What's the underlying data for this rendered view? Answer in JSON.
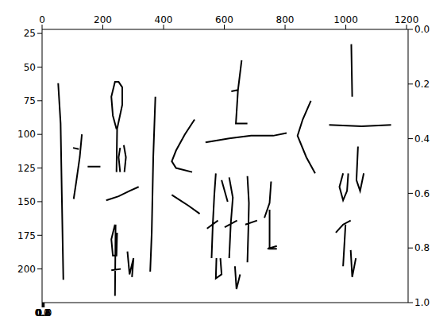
{
  "chart_data": {
    "type": "line",
    "color": "#000000",
    "grid": false,
    "xlim": [
      0,
      1205
    ],
    "xticks": [
      0,
      200,
      400,
      600,
      800,
      1000,
      1200
    ],
    "ylim": [
      22,
      225
    ],
    "yticks": [
      25,
      50,
      75,
      100,
      125,
      150,
      175,
      200
    ],
    "x2lim": [
      0,
      1
    ],
    "x2ticks": [
      {
        "value": 0,
        "label": "0.0"
      },
      {
        "value": 0.2,
        "label": "0.2"
      },
      {
        "value": 0.4,
        "label": "0.4"
      },
      {
        "value": 0.6,
        "label": "0.6"
      },
      {
        "value": 0.8,
        "label": "0.8"
      },
      {
        "value": 1,
        "label": "1.0"
      }
    ],
    "y2lim": [
      0,
      1
    ],
    "y2ticks": [
      {
        "value": 0,
        "label": "0.0"
      },
      {
        "value": 0.2,
        "label": "0.2"
      },
      {
        "value": 0.4,
        "label": "0.4"
      },
      {
        "value": 0.6,
        "label": "0.6"
      },
      {
        "value": 0.8,
        "label": "0.8"
      },
      {
        "value": 1,
        "label": "1.0"
      }
    ],
    "x": [
      53,
      61,
      65,
      70,
      null,
      131,
      124,
      112,
      104,
      null,
      102,
      121,
      null,
      150,
      192,
      null,
      245,
      233,
      228,
      240,
      252,
      264,
      264,
      247,
      245,
      null,
      257,
      252,
      257,
      null,
      269,
      276,
      271,
      null,
      211,
      252,
      288,
      318,
      null,
      240,
      228,
      233,
      245,
      247,
      null,
      242,
      240,
      null,
      228,
      259,
      null,
      281,
      288,
      301,
      296,
      null,
      373,
      366,
      361,
      356,
      null,
      502,
      470,
      441,
      427,
      441,
      494,
      null,
      427,
      482,
      519,
      null,
      538,
      616,
      688,
      761,
      805,
      null,
      657,
      645,
      638,
      676,
      null,
      623,
      645,
      null,
      885,
      858,
      841,
      870,
      899,
      null,
      1018,
      1021,
      null,
      945,
      1052,
      1149,
      null,
      572,
      567,
      562,
      558,
      null,
      543,
      579,
      null,
      616,
      628,
      621,
      616,
      null,
      591,
      611,
      null,
      601,
      642,
      null,
      676,
      681,
      679,
      676,
      null,
      669,
      708,
      null,
      754,
      749,
      732,
      null,
      749,
      749,
      773,
      null,
      742,
      773,
      null,
      574,
      572,
      591,
      587,
      null,
      635,
      640,
      652,
      null,
      991,
      979,
      991,
      1004,
      1008,
      null,
      1040,
      1035,
      1047,
      1059,
      null,
      967,
      991,
      1016,
      null,
      999,
      991,
      null,
      1016,
      1021,
      1033
    ],
    "values": [
      62,
      92,
      145,
      208,
      null,
      100,
      117,
      136,
      148,
      null,
      110,
      111,
      null,
      124,
      124,
      null,
      96,
      86,
      72,
      61,
      61,
      65,
      78,
      96,
      128,
      null,
      110,
      117,
      128,
      null,
      108,
      117,
      128,
      null,
      149,
      146,
      142,
      139,
      null,
      167,
      178,
      190,
      190,
      173,
      null,
      167,
      220,
      null,
      201,
      200,
      null,
      187,
      204,
      192,
      206,
      null,
      72,
      117,
      173,
      202,
      null,
      89,
      100,
      112,
      120,
      125,
      128,
      null,
      145,
      153,
      159,
      null,
      106,
      103,
      101,
      101,
      99,
      null,
      45,
      67,
      92,
      92,
      null,
      68,
      67,
      null,
      75,
      89,
      101,
      117,
      129,
      null,
      33,
      72,
      null,
      93,
      94,
      93,
      null,
      129,
      145,
      167,
      192,
      null,
      170,
      164,
      null,
      132,
      147,
      167,
      192,
      null,
      134,
      150,
      null,
      169,
      164,
      null,
      131,
      151,
      171,
      195,
      null,
      167,
      164,
      null,
      135,
      151,
      162,
      null,
      156,
      185,
      185,
      null,
      185,
      183,
      null,
      192,
      207,
      204,
      192,
      null,
      198,
      215,
      204,
      null,
      129,
      139,
      149,
      142,
      129,
      null,
      109,
      134,
      142,
      129,
      null,
      173,
      167,
      164,
      null,
      167,
      198,
      null,
      186,
      206,
      192
    ]
  }
}
